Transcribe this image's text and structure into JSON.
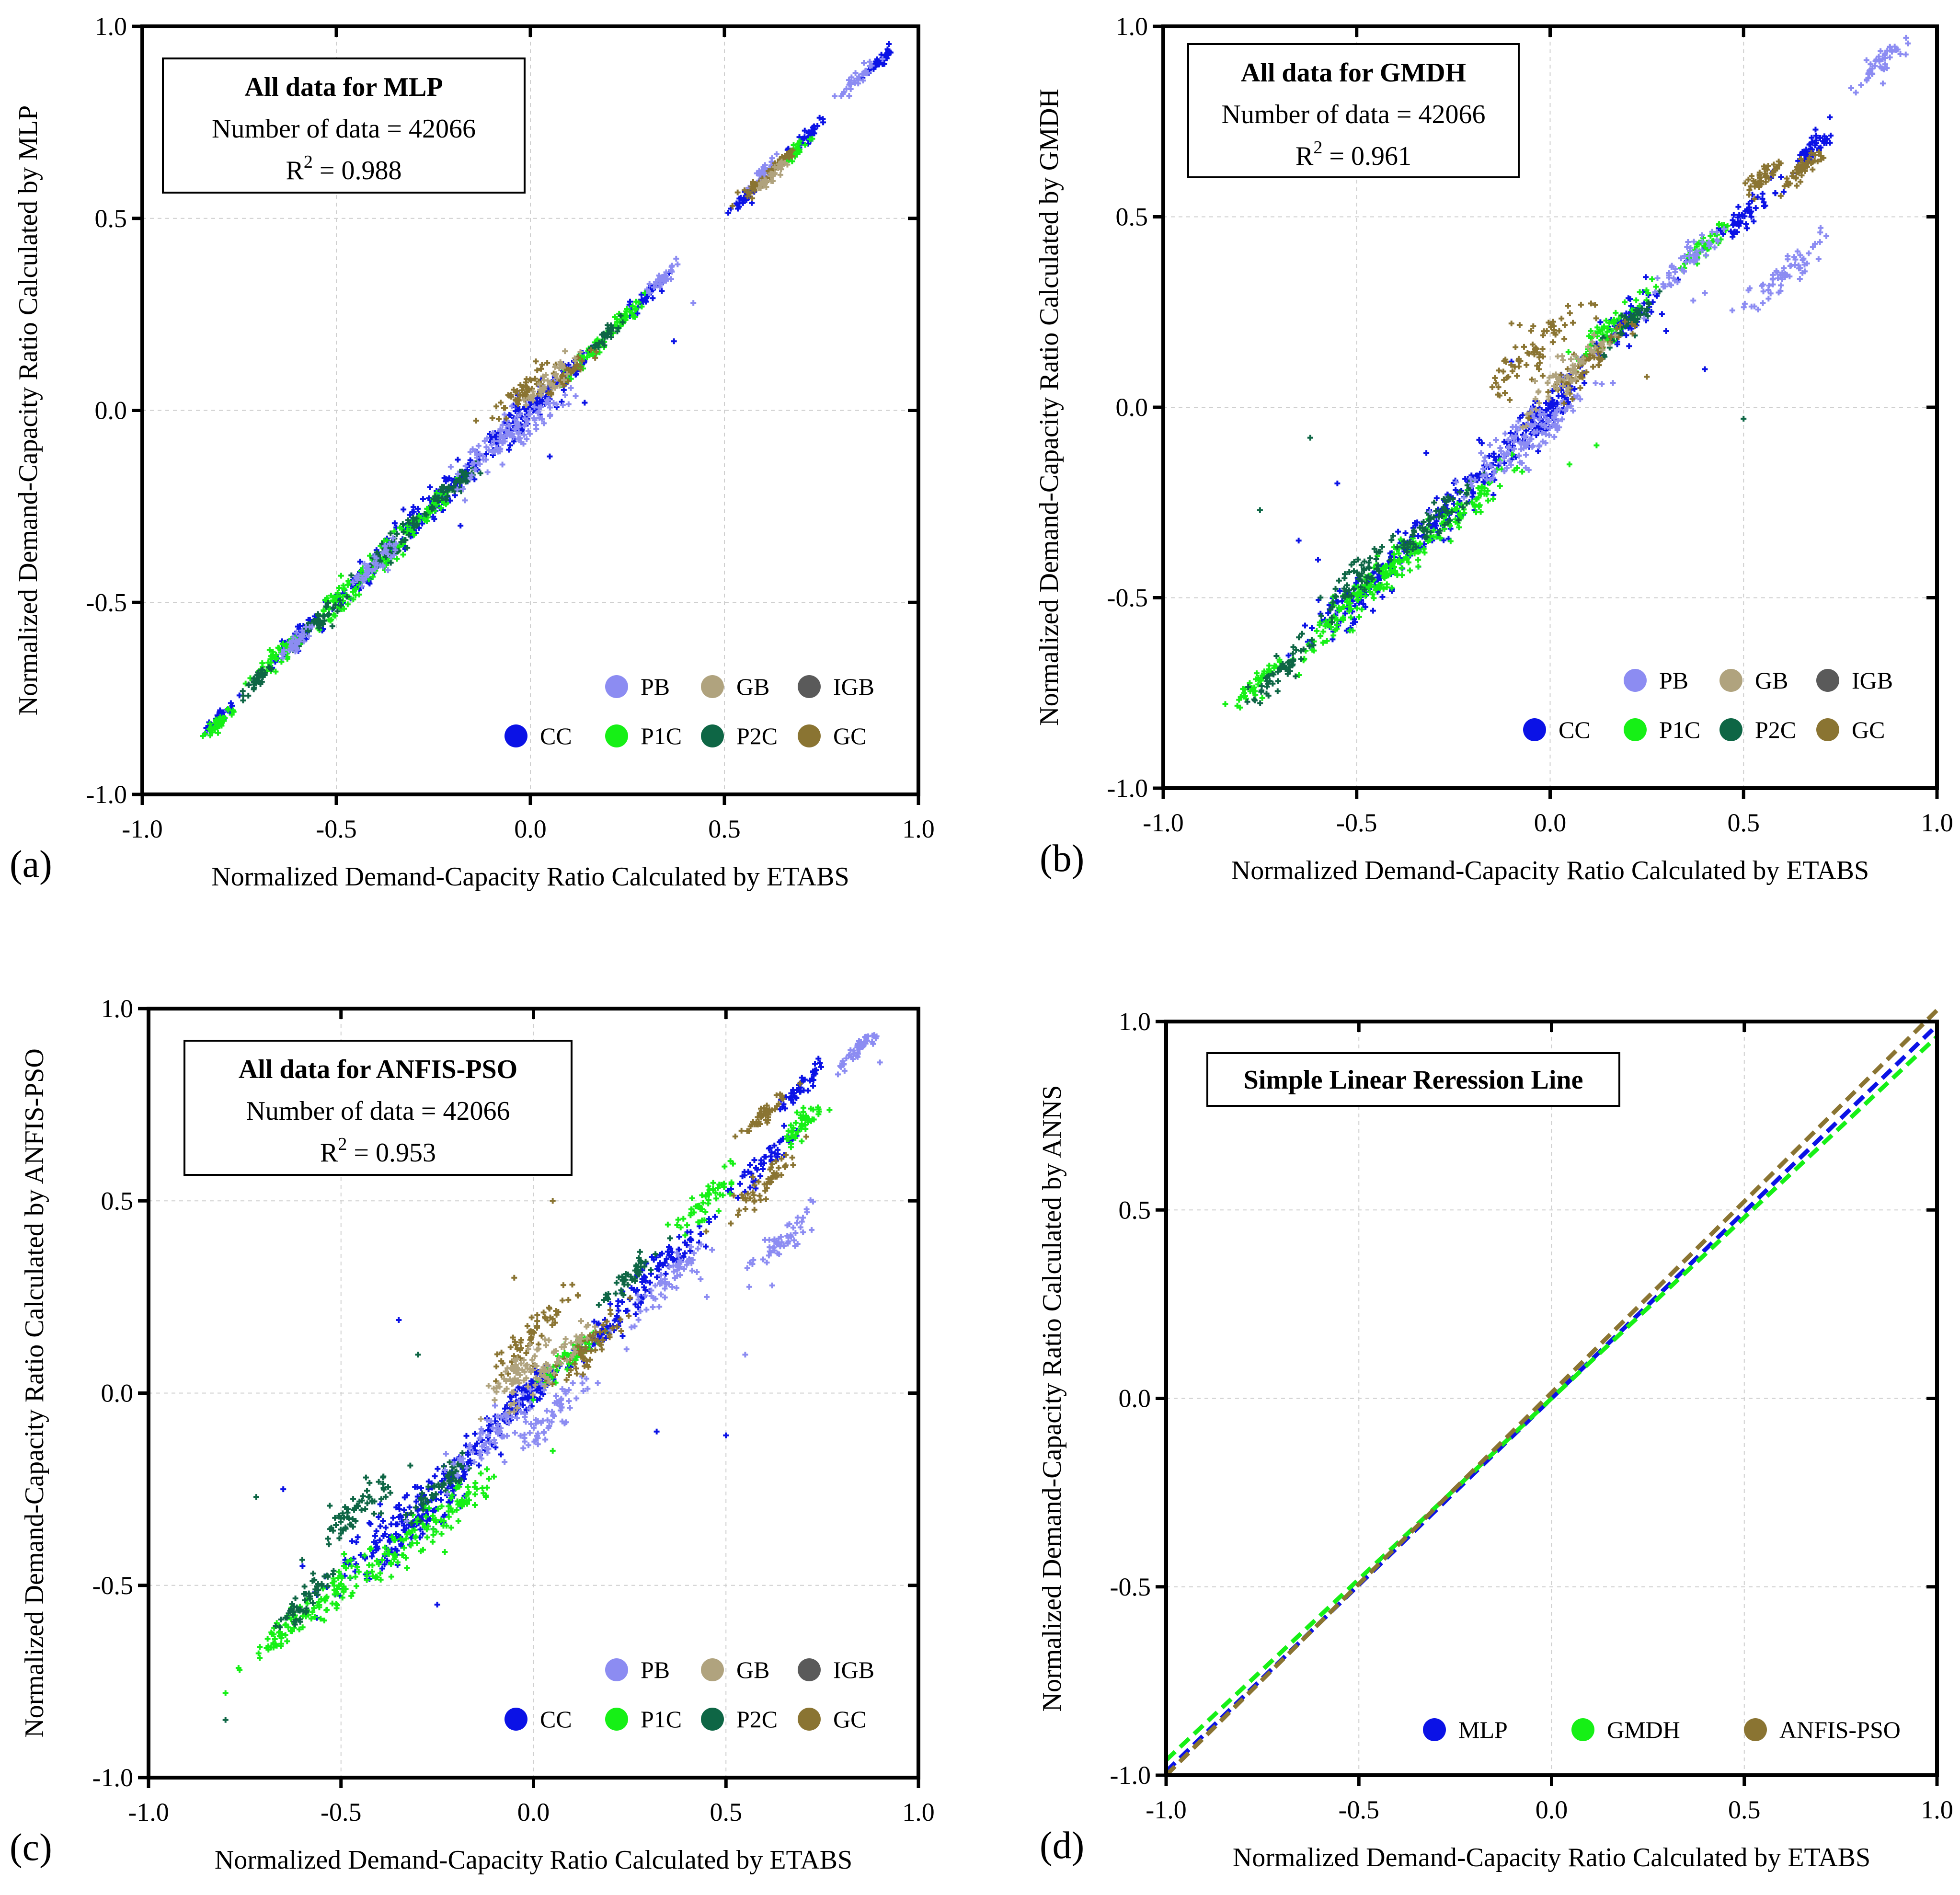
{
  "colors": {
    "PB": "#8c8cf2",
    "GB": "#b0a37e",
    "IGB": "#5a5a5a",
    "CC": "#0b12e6",
    "P1C": "#16f016",
    "P2C": "#0e6645",
    "GC": "#8a7432",
    "MLP": "#0b12e6",
    "GMDH": "#16f016",
    "ANFIS-PSO": "#8a7432"
  },
  "panels": [
    {
      "id": "a",
      "tag": "(a)",
      "xlabel": "Normalized Demand-Capacity Ratio Calculated by ETABS",
      "ylabel": "Normalized Demand-Capacity Ratio Calculated by MLP",
      "info": {
        "title": "All data for MLP",
        "count_line": "Number of data = 42066",
        "r2_prefix": "R",
        "r2_sup": "2",
        "r2_value": " = 0.988"
      }
    },
    {
      "id": "b",
      "tag": "(b)",
      "xlabel": "Normalized Demand-Capacity Ratio Calculated by ETABS",
      "ylabel": "Normalized Demand-Capacity Ratio Calculated by GMDH",
      "info": {
        "title": "All data for GMDH",
        "count_line": "Number of data = 42066",
        "r2_prefix": "R",
        "r2_sup": "2",
        "r2_value": " = 0.961"
      }
    },
    {
      "id": "c",
      "tag": "(c)",
      "xlabel": "Normalized Demand-Capacity Ratio Calculated by ETABS",
      "ylabel": "Normalized Demand-Capacity Ratio Calculated by ANFIS-PSO",
      "info": {
        "title": "All data for ANFIS-PSO",
        "count_line": "Number of data = 42066",
        "r2_prefix": "R",
        "r2_sup": "2",
        "r2_value": " = 0.953"
      }
    },
    {
      "id": "d",
      "tag": "(d)",
      "xlabel": "Normalized Demand-Capacity Ratio Calculated by ETABS",
      "ylabel": "Normalized Demand-Capacity Ratio Calculated by ANNS",
      "info": {
        "title": "Simple Linear Reression Line"
      }
    }
  ],
  "chart_data": [
    {
      "type": "scatter",
      "panel": "a",
      "xlim": [
        -1.0,
        1.0
      ],
      "ylim": [
        -1.0,
        1.0
      ],
      "ticks": [
        "-1.0",
        "-0.5",
        "0.0",
        "0.5",
        "1.0"
      ],
      "grid": true,
      "legend": {
        "placement": "bottom-right",
        "rows": [
          [
            "PB",
            "GB",
            "IGB"
          ],
          [
            "CC",
            "P1C",
            "P2C",
            "GC"
          ]
        ]
      },
      "series": [
        {
          "name": "CC",
          "clusters": [
            [
              -0.8,
              -0.8,
              0.02
            ],
            [
              -0.6,
              -0.59,
              0.03
            ],
            [
              -0.45,
              -0.45,
              0.04
            ],
            [
              -0.3,
              -0.29,
              0.05
            ],
            [
              -0.2,
              -0.2,
              0.04
            ],
            [
              -0.05,
              -0.04,
              0.05
            ],
            [
              0.0,
              0.0,
              0.04
            ],
            [
              0.1,
              0.1,
              0.03
            ],
            [
              0.3,
              0.3,
              0.02
            ],
            [
              0.55,
              0.55,
              0.02
            ],
            [
              0.72,
              0.72,
              0.02
            ],
            [
              0.9,
              0.91,
              0.02
            ]
          ],
          "outliers": [
            [
              0.05,
              -0.12
            ],
            [
              -0.18,
              -0.3
            ],
            [
              0.37,
              0.18
            ],
            [
              0.14,
              0.02
            ]
          ]
        },
        {
          "name": "P1C",
          "clusters": [
            [
              -0.8,
              -0.81,
              0.02
            ],
            [
              -0.65,
              -0.64,
              0.03
            ],
            [
              -0.5,
              -0.5,
              0.04
            ],
            [
              -0.38,
              -0.38,
              0.04
            ],
            [
              -0.25,
              -0.25,
              0.03
            ],
            [
              0.15,
              0.15,
              0.03
            ],
            [
              0.25,
              0.25,
              0.02
            ],
            [
              0.68,
              0.67,
              0.02
            ]
          ],
          "outliers": []
        },
        {
          "name": "P2C",
          "clusters": [
            [
              -0.7,
              -0.7,
              0.02
            ],
            [
              -0.55,
              -0.55,
              0.03
            ],
            [
              -0.35,
              -0.35,
              0.04
            ],
            [
              -0.2,
              -0.2,
              0.03
            ],
            [
              0.2,
              0.2,
              0.02
            ]
          ],
          "outliers": []
        },
        {
          "name": "PB",
          "clusters": [
            [
              -0.6,
              -0.6,
              0.02
            ],
            [
              -0.4,
              -0.4,
              0.03
            ],
            [
              -0.1,
              -0.1,
              0.05
            ],
            [
              0.0,
              -0.03,
              0.05
            ],
            [
              0.35,
              0.35,
              0.02
            ],
            [
              0.6,
              0.62,
              0.02
            ],
            [
              0.85,
              0.87,
              0.02
            ]
          ],
          "outliers": [
            [
              0.42,
              0.28
            ]
          ]
        },
        {
          "name": "GC",
          "clusters": [
            [
              -0.02,
              0.05,
              0.04
            ],
            [
              0.1,
              0.1,
              0.03
            ],
            [
              0.58,
              0.58,
              0.02
            ],
            [
              0.65,
              0.65,
              0.02
            ]
          ],
          "outliers": []
        },
        {
          "name": "GB",
          "clusters": [
            [
              0.05,
              0.08,
              0.03
            ],
            [
              0.62,
              0.61,
              0.02
            ]
          ],
          "outliers": []
        }
      ]
    },
    {
      "type": "scatter",
      "panel": "b",
      "xlim": [
        -1.0,
        1.0
      ],
      "ylim": [
        -1.0,
        1.0
      ],
      "ticks": [
        "-1.0",
        "-0.5",
        "0.0",
        "0.5",
        "1.0"
      ],
      "grid": true,
      "legend": {
        "placement": "bottom-right",
        "rows": [
          [
            "PB",
            "GB",
            "IGB"
          ],
          [
            "CC",
            "P1C",
            "P2C",
            "GC"
          ]
        ]
      },
      "series": [
        {
          "name": "CC",
          "clusters": [
            [
              -0.5,
              -0.5,
              0.07
            ],
            [
              -0.35,
              -0.35,
              0.07
            ],
            [
              -0.2,
              -0.2,
              0.06
            ],
            [
              -0.05,
              -0.05,
              0.06
            ],
            [
              0.0,
              0.0,
              0.04
            ],
            [
              0.2,
              0.22,
              0.05
            ],
            [
              0.5,
              0.5,
              0.04
            ],
            [
              0.68,
              0.68,
              0.03
            ]
          ],
          "outliers": [
            [
              -0.6,
              -0.4
            ],
            [
              -0.55,
              -0.2
            ],
            [
              -0.32,
              -0.12
            ],
            [
              -0.1,
              0.12
            ],
            [
              0.3,
              0.2
            ],
            [
              0.4,
              0.1
            ],
            [
              -0.65,
              -0.35
            ]
          ]
        },
        {
          "name": "P1C",
          "clusters": [
            [
              -0.75,
              -0.72,
              0.03
            ],
            [
              -0.55,
              -0.55,
              0.05
            ],
            [
              -0.45,
              -0.45,
              0.05
            ],
            [
              -0.35,
              -0.38,
              0.05
            ],
            [
              -0.2,
              -0.25,
              0.05
            ],
            [
              0.15,
              0.2,
              0.05
            ],
            [
              0.4,
              0.42,
              0.03
            ]
          ],
          "outliers": [
            [
              0.12,
              -0.1
            ],
            [
              0.05,
              -0.15
            ]
          ]
        },
        {
          "name": "P2C",
          "clusters": [
            [
              -0.7,
              -0.7,
              0.04
            ],
            [
              -0.5,
              -0.45,
              0.05
            ],
            [
              -0.3,
              -0.3,
              0.05
            ],
            [
              0.2,
              0.22,
              0.03
            ]
          ],
          "outliers": [
            [
              -0.75,
              -0.27
            ],
            [
              -0.62,
              -0.08
            ],
            [
              0.5,
              -0.03
            ],
            [
              -0.3,
              -0.25
            ]
          ]
        },
        {
          "name": "PB",
          "clusters": [
            [
              -0.1,
              -0.1,
              0.06
            ],
            [
              0.0,
              -0.05,
              0.05
            ],
            [
              0.35,
              0.38,
              0.04
            ],
            [
              0.6,
              0.35,
              0.05
            ],
            [
              0.85,
              0.9,
              0.03
            ]
          ],
          "outliers": [
            [
              0.37,
              0.28
            ],
            [
              0.4,
              0.3
            ],
            [
              0.92,
              0.97
            ],
            [
              0.86,
              0.85
            ]
          ]
        },
        {
          "name": "GC",
          "clusters": [
            [
              -0.05,
              0.15,
              0.06
            ],
            [
              0.1,
              0.12,
              0.05
            ],
            [
              0.55,
              0.6,
              0.03
            ],
            [
              0.65,
              0.62,
              0.03
            ]
          ],
          "outliers": [
            [
              -0.1,
              0.22
            ],
            [
              0.25,
              0.08
            ]
          ]
        },
        {
          "name": "GB",
          "clusters": [
            [
              0.05,
              0.1,
              0.05
            ]
          ],
          "outliers": []
        }
      ]
    },
    {
      "type": "scatter",
      "panel": "c",
      "xlim": [
        -1.0,
        1.0
      ],
      "ylim": [
        -1.0,
        1.0
      ],
      "ticks": [
        "-1.0",
        "-0.5",
        "0.0",
        "0.5",
        "1.0"
      ],
      "grid": true,
      "legend": {
        "placement": "bottom-right",
        "rows": [
          [
            "PB",
            "GB",
            "IGB"
          ],
          [
            "CC",
            "P1C",
            "P2C",
            "GC"
          ]
        ]
      },
      "series": [
        {
          "name": "CC",
          "clusters": [
            [
              -0.4,
              -0.38,
              0.07
            ],
            [
              -0.3,
              -0.35,
              0.06
            ],
            [
              -0.2,
              -0.2,
              0.06
            ],
            [
              -0.05,
              -0.03,
              0.05
            ],
            [
              0.0,
              0.0,
              0.04
            ],
            [
              0.2,
              0.18,
              0.05
            ],
            [
              0.35,
              0.35,
              0.05
            ],
            [
              0.6,
              0.6,
              0.04
            ],
            [
              0.7,
              0.8,
              0.03
            ]
          ],
          "outliers": [
            [
              -0.35,
              0.19
            ],
            [
              -0.65,
              -0.25
            ],
            [
              -0.6,
              -0.45
            ],
            [
              0.32,
              -0.1
            ],
            [
              0.5,
              -0.11
            ],
            [
              -0.25,
              -0.55
            ]
          ]
        },
        {
          "name": "P1C",
          "clusters": [
            [
              -0.65,
              -0.62,
              0.04
            ],
            [
              -0.5,
              -0.5,
              0.05
            ],
            [
              -0.35,
              -0.4,
              0.05
            ],
            [
              -0.2,
              -0.3,
              0.05
            ],
            [
              0.1,
              0.1,
              0.04
            ],
            [
              0.45,
              0.5,
              0.04
            ],
            [
              0.7,
              0.7,
              0.03
            ]
          ],
          "outliers": [
            [
              -0.8,
              -0.78
            ],
            [
              0.05,
              -0.15
            ]
          ]
        },
        {
          "name": "P2C",
          "clusters": [
            [
              -0.6,
              -0.55,
              0.04
            ],
            [
              -0.45,
              -0.3,
              0.05
            ],
            [
              -0.25,
              -0.25,
              0.04
            ],
            [
              0.25,
              0.3,
              0.03
            ]
          ],
          "outliers": [
            [
              -0.8,
              -0.85
            ],
            [
              -0.72,
              -0.27
            ],
            [
              -0.3,
              0.1
            ]
          ]
        },
        {
          "name": "PB",
          "clusters": [
            [
              -0.1,
              -0.1,
              0.06
            ],
            [
              0.05,
              -0.05,
              0.05
            ],
            [
              0.35,
              0.3,
              0.05
            ],
            [
              0.65,
              0.4,
              0.04
            ],
            [
              0.85,
              0.9,
              0.03
            ]
          ],
          "outliers": [
            [
              0.45,
              0.25
            ],
            [
              0.55,
              0.1
            ],
            [
              0.62,
              0.28
            ],
            [
              0.9,
              0.86
            ]
          ]
        },
        {
          "name": "GC",
          "clusters": [
            [
              0.0,
              0.15,
              0.05
            ],
            [
              0.15,
              0.12,
              0.05
            ],
            [
              0.6,
              0.55,
              0.04
            ],
            [
              0.6,
              0.72,
              0.03
            ]
          ],
          "outliers": [
            [
              0.05,
              0.5
            ],
            [
              -0.05,
              0.3
            ]
          ]
        },
        {
          "name": "GB",
          "clusters": [
            [
              0.05,
              0.08,
              0.05
            ],
            [
              -0.05,
              0.05,
              0.04
            ]
          ],
          "outliers": []
        }
      ]
    },
    {
      "type": "line",
      "panel": "d",
      "xlim": [
        -1.0,
        1.0
      ],
      "ylim": [
        -1.0,
        1.0
      ],
      "ticks": [
        "-1.0",
        "-0.5",
        "0.0",
        "0.5",
        "1.0"
      ],
      "grid": true,
      "line_style": "dashed",
      "legend": {
        "placement": "bottom",
        "rows": [
          [
            "MLP",
            "GMDH",
            "ANFIS-PSO"
          ]
        ]
      },
      "series": [
        {
          "name": "MLP",
          "x": [
            -1.0,
            1.0
          ],
          "y": [
            -0.99,
            0.99
          ]
        },
        {
          "name": "GMDH",
          "x": [
            -1.0,
            1.0
          ],
          "y": [
            -0.96,
            0.96
          ]
        },
        {
          "name": "ANFIS-PSO",
          "x": [
            -1.0,
            1.0
          ],
          "y": [
            -1.0,
            1.03
          ]
        }
      ]
    }
  ]
}
